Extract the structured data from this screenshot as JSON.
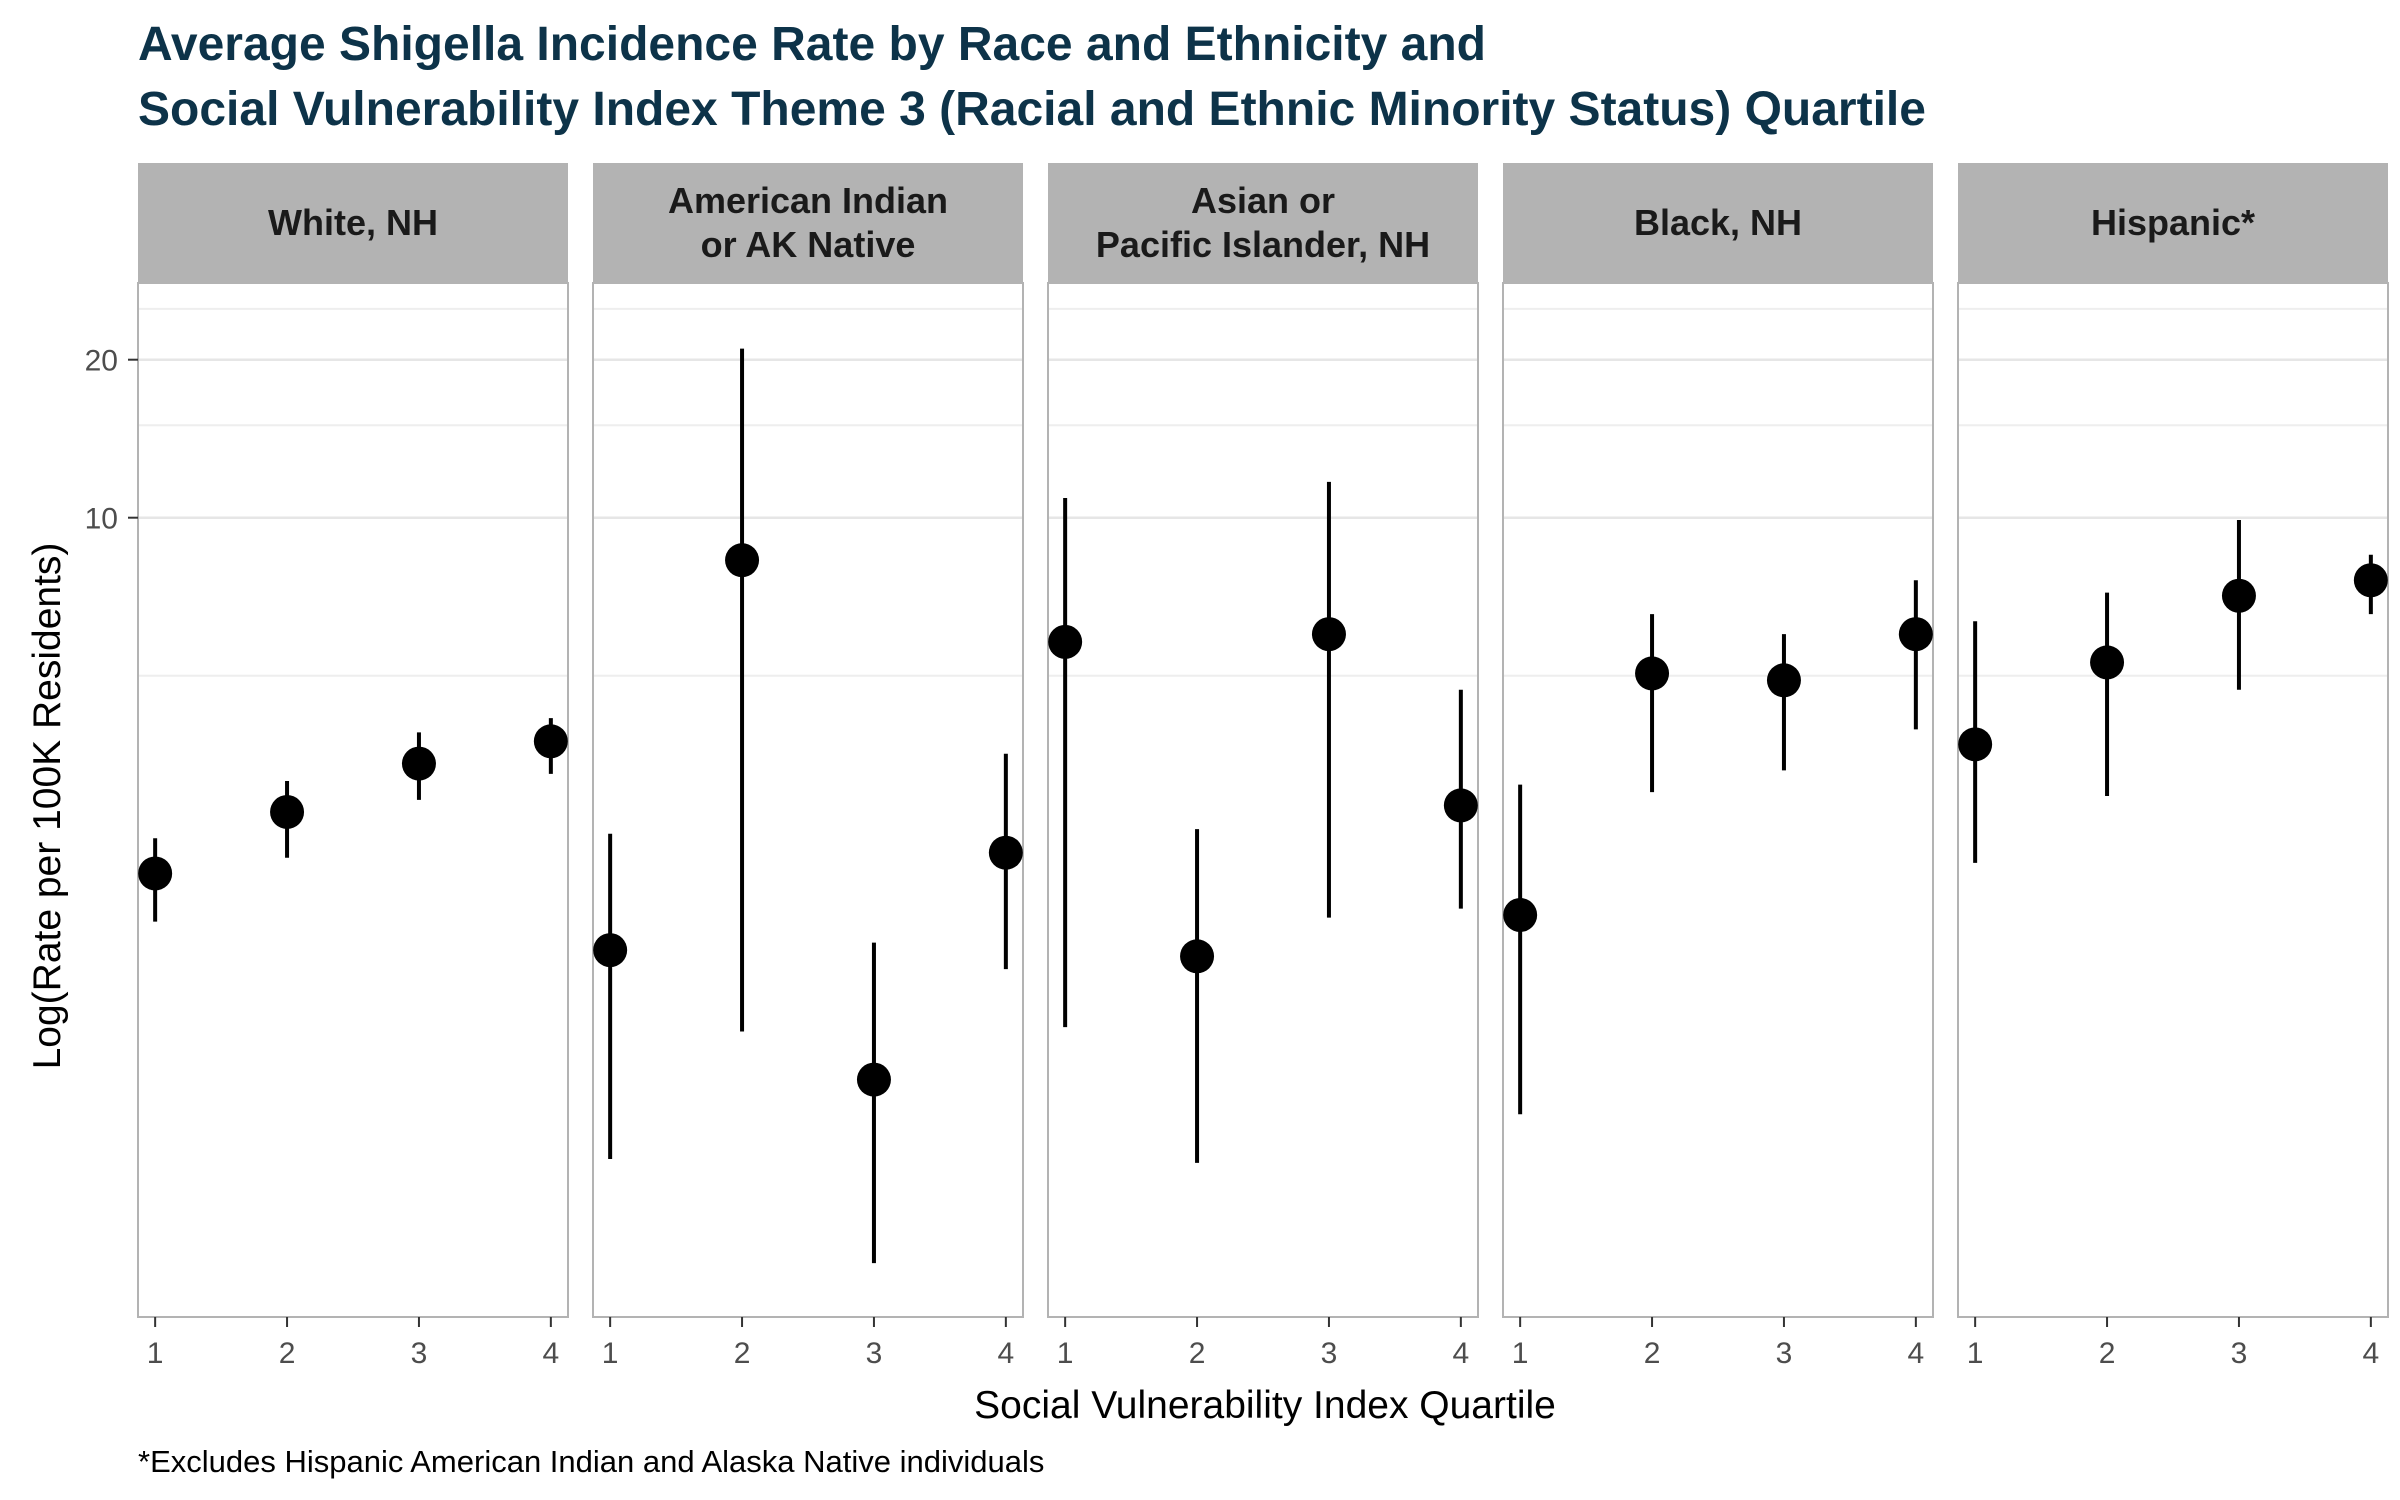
{
  "chart_data": {
    "type": "scatter",
    "title_lines": [
      "Average Shigella Incidence Rate by Race and Ethnicity and",
      "Social Vulnerability Index Theme 3 (Racial and Ethnic Minority Status) Quartile"
    ],
    "xlabel": "Social Vulnerability Index Quartile",
    "ylabel": "Log(Rate per 100K Residents)",
    "footnote": "*Excludes Hispanic American Indian and Alaska Native individuals",
    "y_scale": "log",
    "ylim": [
      0.3,
      28
    ],
    "y_ticks": [
      10,
      20
    ],
    "y_minor_gridlines": [
      5,
      15,
      25
    ],
    "x": [
      1,
      2,
      3,
      4
    ],
    "x_tick_labels": [
      "1",
      "2",
      "3",
      "4"
    ],
    "grid": true,
    "colors": {
      "point": "#000000",
      "strip_bg": "#b3b3b3",
      "title": "#0d3349",
      "gridline": "#e6e6e6",
      "panel_border": "#b3b3b3"
    },
    "panels": [
      {
        "label_lines": [
          "White, NH"
        ],
        "values": [
          2.1,
          2.75,
          3.4,
          3.75
        ],
        "lower": [
          1.7,
          2.25,
          2.9,
          3.25
        ],
        "upper": [
          2.45,
          3.15,
          3.9,
          4.15
        ]
      },
      {
        "label_lines": [
          "American Indian",
          "or AK Native"
        ],
        "values": [
          1.5,
          8.3,
          0.85,
          2.3
        ],
        "lower": [
          0.6,
          1.05,
          0.38,
          1.38
        ],
        "upper": [
          2.5,
          21.0,
          1.55,
          3.55
        ]
      },
      {
        "label_lines": [
          "Asian or",
          "Pacific Islander, NH"
        ],
        "values": [
          5.8,
          1.46,
          6.0,
          2.83
        ],
        "lower": [
          1.07,
          0.59,
          1.73,
          1.8
        ],
        "upper": [
          10.9,
          2.55,
          11.7,
          4.7
        ]
      },
      {
        "label_lines": [
          "Black, NH"
        ],
        "values": [
          1.75,
          5.05,
          4.9,
          6.0
        ],
        "lower": [
          0.73,
          3.0,
          3.3,
          3.95
        ],
        "upper": [
          3.1,
          6.55,
          6.0,
          7.6
        ]
      },
      {
        "label_lines": [
          "Hispanic*"
        ],
        "values": [
          3.7,
          5.3,
          7.1,
          7.6
        ],
        "lower": [
          2.2,
          2.95,
          4.7,
          6.55
        ],
        "upper": [
          6.35,
          7.2,
          9.9,
          8.5
        ]
      }
    ]
  }
}
